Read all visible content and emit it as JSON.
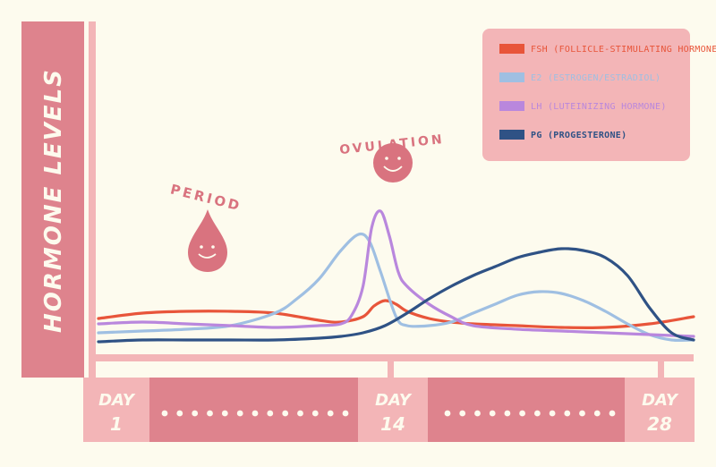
{
  "chart_data": {
    "type": "line",
    "ylabel": "HORMONE LEVELS",
    "x_domain": [
      1,
      28
    ],
    "x_tick_labels": [
      {
        "line1": "DAY",
        "line2": "1",
        "day": 1
      },
      {
        "line1": "DAY",
        "line2": "14",
        "day": 14
      },
      {
        "line1": "DAY",
        "line2": "28",
        "day": 28
      }
    ],
    "y_domain": [
      0,
      100
    ],
    "grid": false,
    "legend_position": "top-right",
    "annotations": [
      {
        "text": "PERIOD",
        "day": 6,
        "icon": "blood-drop-icon"
      },
      {
        "text": "OVULATION",
        "day": 14,
        "icon": "smiley-icon"
      }
    ],
    "series": [
      {
        "name": "FSH (FOLLICLE-STIMULATING HORMONE)",
        "color": "#e8553a",
        "x": [
          1,
          3,
          5,
          7,
          9,
          11,
          12,
          13,
          13.5,
          14,
          14.5,
          15,
          16,
          17,
          18,
          20,
          22,
          24,
          26,
          28
        ],
        "y": [
          14,
          17,
          18,
          18,
          17,
          13,
          12,
          15,
          21,
          24,
          22,
          18,
          14,
          12,
          11,
          10,
          9,
          9,
          11,
          15
        ]
      },
      {
        "name": "E2 (ESTROGEN/ESTRADIOL)",
        "color": "#9fbfe2",
        "x": [
          1,
          3,
          5,
          7,
          9,
          10,
          11,
          12,
          12.8,
          13.3,
          13.8,
          14.5,
          15,
          16,
          17,
          18,
          19,
          20,
          21,
          22,
          23,
          24,
          25,
          26,
          27,
          28
        ],
        "y": [
          6,
          7,
          8,
          10,
          17,
          25,
          36,
          52,
          61,
          57,
          40,
          15,
          10,
          10,
          12,
          17,
          22,
          27,
          29,
          28,
          24,
          18,
          11,
          5,
          2,
          2
        ]
      },
      {
        "name": "LH (LUTEINIZING HORMONE)",
        "color": "#b987dd",
        "x": [
          1,
          3,
          5,
          7,
          9,
          11,
          12,
          12.5,
          13,
          13.4,
          13.8,
          14.2,
          14.6,
          15,
          16,
          17,
          18,
          20,
          22,
          24,
          26,
          28
        ],
        "y": [
          11,
          12,
          11,
          10,
          9,
          10,
          11,
          16,
          32,
          65,
          74,
          60,
          40,
          32,
          22,
          15,
          10,
          8,
          7,
          6,
          5,
          4
        ]
      },
      {
        "name": "PG (PROGESTERONE)",
        "color": "#2f5285",
        "x": [
          1,
          3,
          5,
          7,
          9,
          11,
          12,
          13,
          14,
          15,
          16,
          17,
          18,
          19,
          20,
          21,
          22,
          23,
          24,
          25,
          26,
          27,
          28
        ],
        "y": [
          1,
          2,
          2,
          2,
          2,
          3,
          4,
          6,
          10,
          17,
          25,
          32,
          38,
          43,
          48,
          51,
          53,
          52,
          48,
          38,
          20,
          6,
          2
        ]
      }
    ]
  },
  "colors": {
    "background": "#fdfbee",
    "panel": "#de838d",
    "panel_light": "#f3b5b7",
    "legend_bg": "#f3b5b7",
    "annotation": "#d9737f",
    "axis": "#f3b5b7"
  }
}
